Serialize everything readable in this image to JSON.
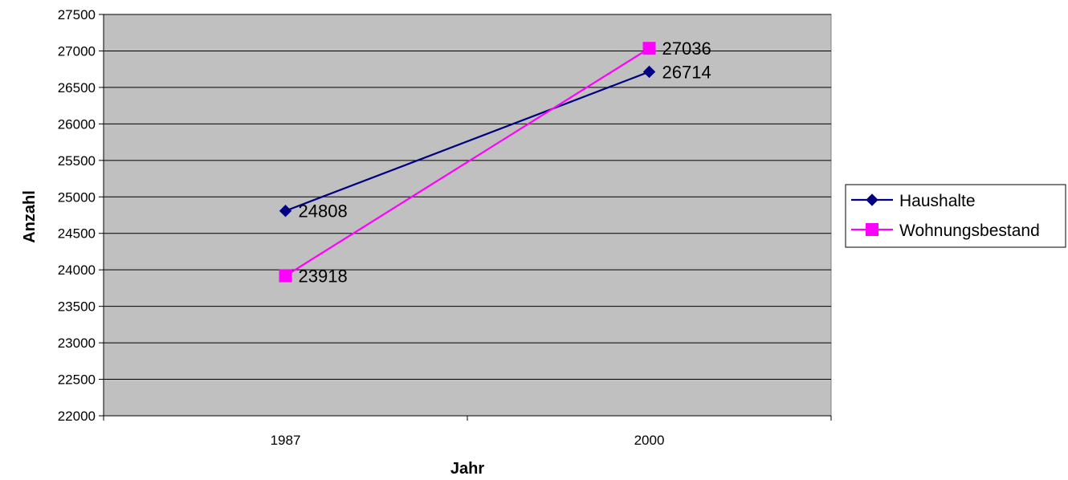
{
  "chart_data": {
    "type": "line",
    "title": "",
    "xlabel": "Jahr",
    "ylabel": "Anzahl",
    "categories": [
      "1987",
      "2000"
    ],
    "ylim": [
      22000,
      27500
    ],
    "ytick_step": 500,
    "grid": true,
    "plot_background": "#c0c0c0",
    "legend_position": "right",
    "series": [
      {
        "name": "Haushalte",
        "values": [
          24808,
          26714
        ],
        "color": "#000080",
        "marker": "diamond"
      },
      {
        "name": "Wohnungsbestand",
        "values": [
          23918,
          27036
        ],
        "color": "#ff00ff",
        "marker": "square"
      }
    ]
  }
}
